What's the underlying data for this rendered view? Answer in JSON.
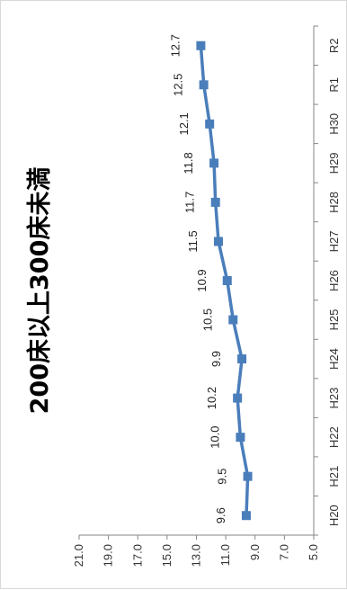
{
  "chart_data": {
    "type": "line",
    "title": "200床以上300床未満",
    "categories": [
      "H20",
      "H21",
      "H22",
      "H23",
      "H24",
      "H25",
      "H26",
      "H27",
      "H28",
      "H29",
      "H30",
      "R1",
      "R2"
    ],
    "series": [
      {
        "values": [
          9.6,
          9.5,
          10.0,
          10.2,
          9.9,
          10.5,
          10.9,
          11.5,
          11.7,
          11.8,
          12.1,
          12.5,
          12.7
        ]
      }
    ],
    "value_axis": {
      "min": 5.0,
      "max": 21.0,
      "step": 2.0,
      "tick_labels": [
        "5.0",
        "7.0",
        "9.0",
        "11.0",
        "13.0",
        "15.0",
        "17.0",
        "19.0",
        "21.0"
      ]
    },
    "data_labels": [
      "9.6",
      "9.5",
      "10.0",
      "10.2",
      "9.9",
      "10.5",
      "10.9",
      "11.5",
      "11.7",
      "11.8",
      "12.1",
      "12.5",
      "12.7"
    ],
    "series_color": "#4a7ebb",
    "axis_color": "#868686",
    "grid": false,
    "legend": "none",
    "orientation": "rotated-90"
  }
}
